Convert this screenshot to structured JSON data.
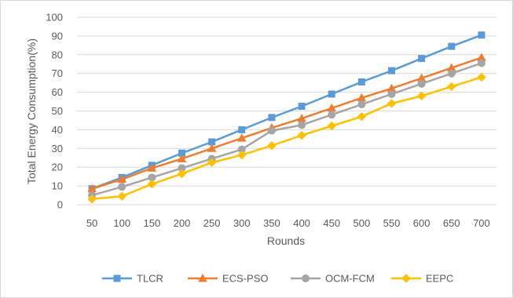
{
  "chart_data": {
    "type": "line",
    "title": "",
    "xlabel": "Rounds",
    "ylabel": "Total Energy Consumption(%)",
    "categories": [
      "50",
      "100",
      "150",
      "200",
      "250",
      "300",
      "350",
      "400",
      "450",
      "500",
      "550",
      "600",
      "650",
      "700"
    ],
    "ylim": [
      0,
      100
    ],
    "yticks": [
      0,
      10,
      20,
      30,
      40,
      50,
      60,
      70,
      80,
      90,
      100
    ],
    "grid": true,
    "legend_position": "bottom",
    "series": [
      {
        "name": "TLCR",
        "color": "#5b9bd5",
        "marker": "square",
        "values": [
          8.5,
          14.5,
          21,
          27.5,
          33.5,
          40,
          46.5,
          52.5,
          59,
          65.5,
          71.5,
          78,
          84.5,
          90.5
        ]
      },
      {
        "name": "ECS-PSO",
        "color": "#ed7d31",
        "marker": "triangle",
        "values": [
          8.5,
          13.5,
          19.5,
          24.5,
          30,
          35.5,
          41,
          46,
          51.5,
          57,
          62,
          67.5,
          73,
          78.5
        ]
      },
      {
        "name": "OCM-FCM",
        "color": "#a5a5a5",
        "marker": "circle",
        "values": [
          5,
          9.5,
          14.5,
          19.5,
          24.5,
          29.5,
          39.5,
          42.5,
          48,
          53.5,
          59,
          64.5,
          70,
          75.5
        ]
      },
      {
        "name": "EEPC",
        "color": "#ffc000",
        "marker": "diamond",
        "values": [
          3,
          4.5,
          11,
          16.5,
          22.5,
          26.5,
          31.5,
          37,
          42,
          47,
          54,
          58,
          63,
          68
        ]
      }
    ]
  }
}
